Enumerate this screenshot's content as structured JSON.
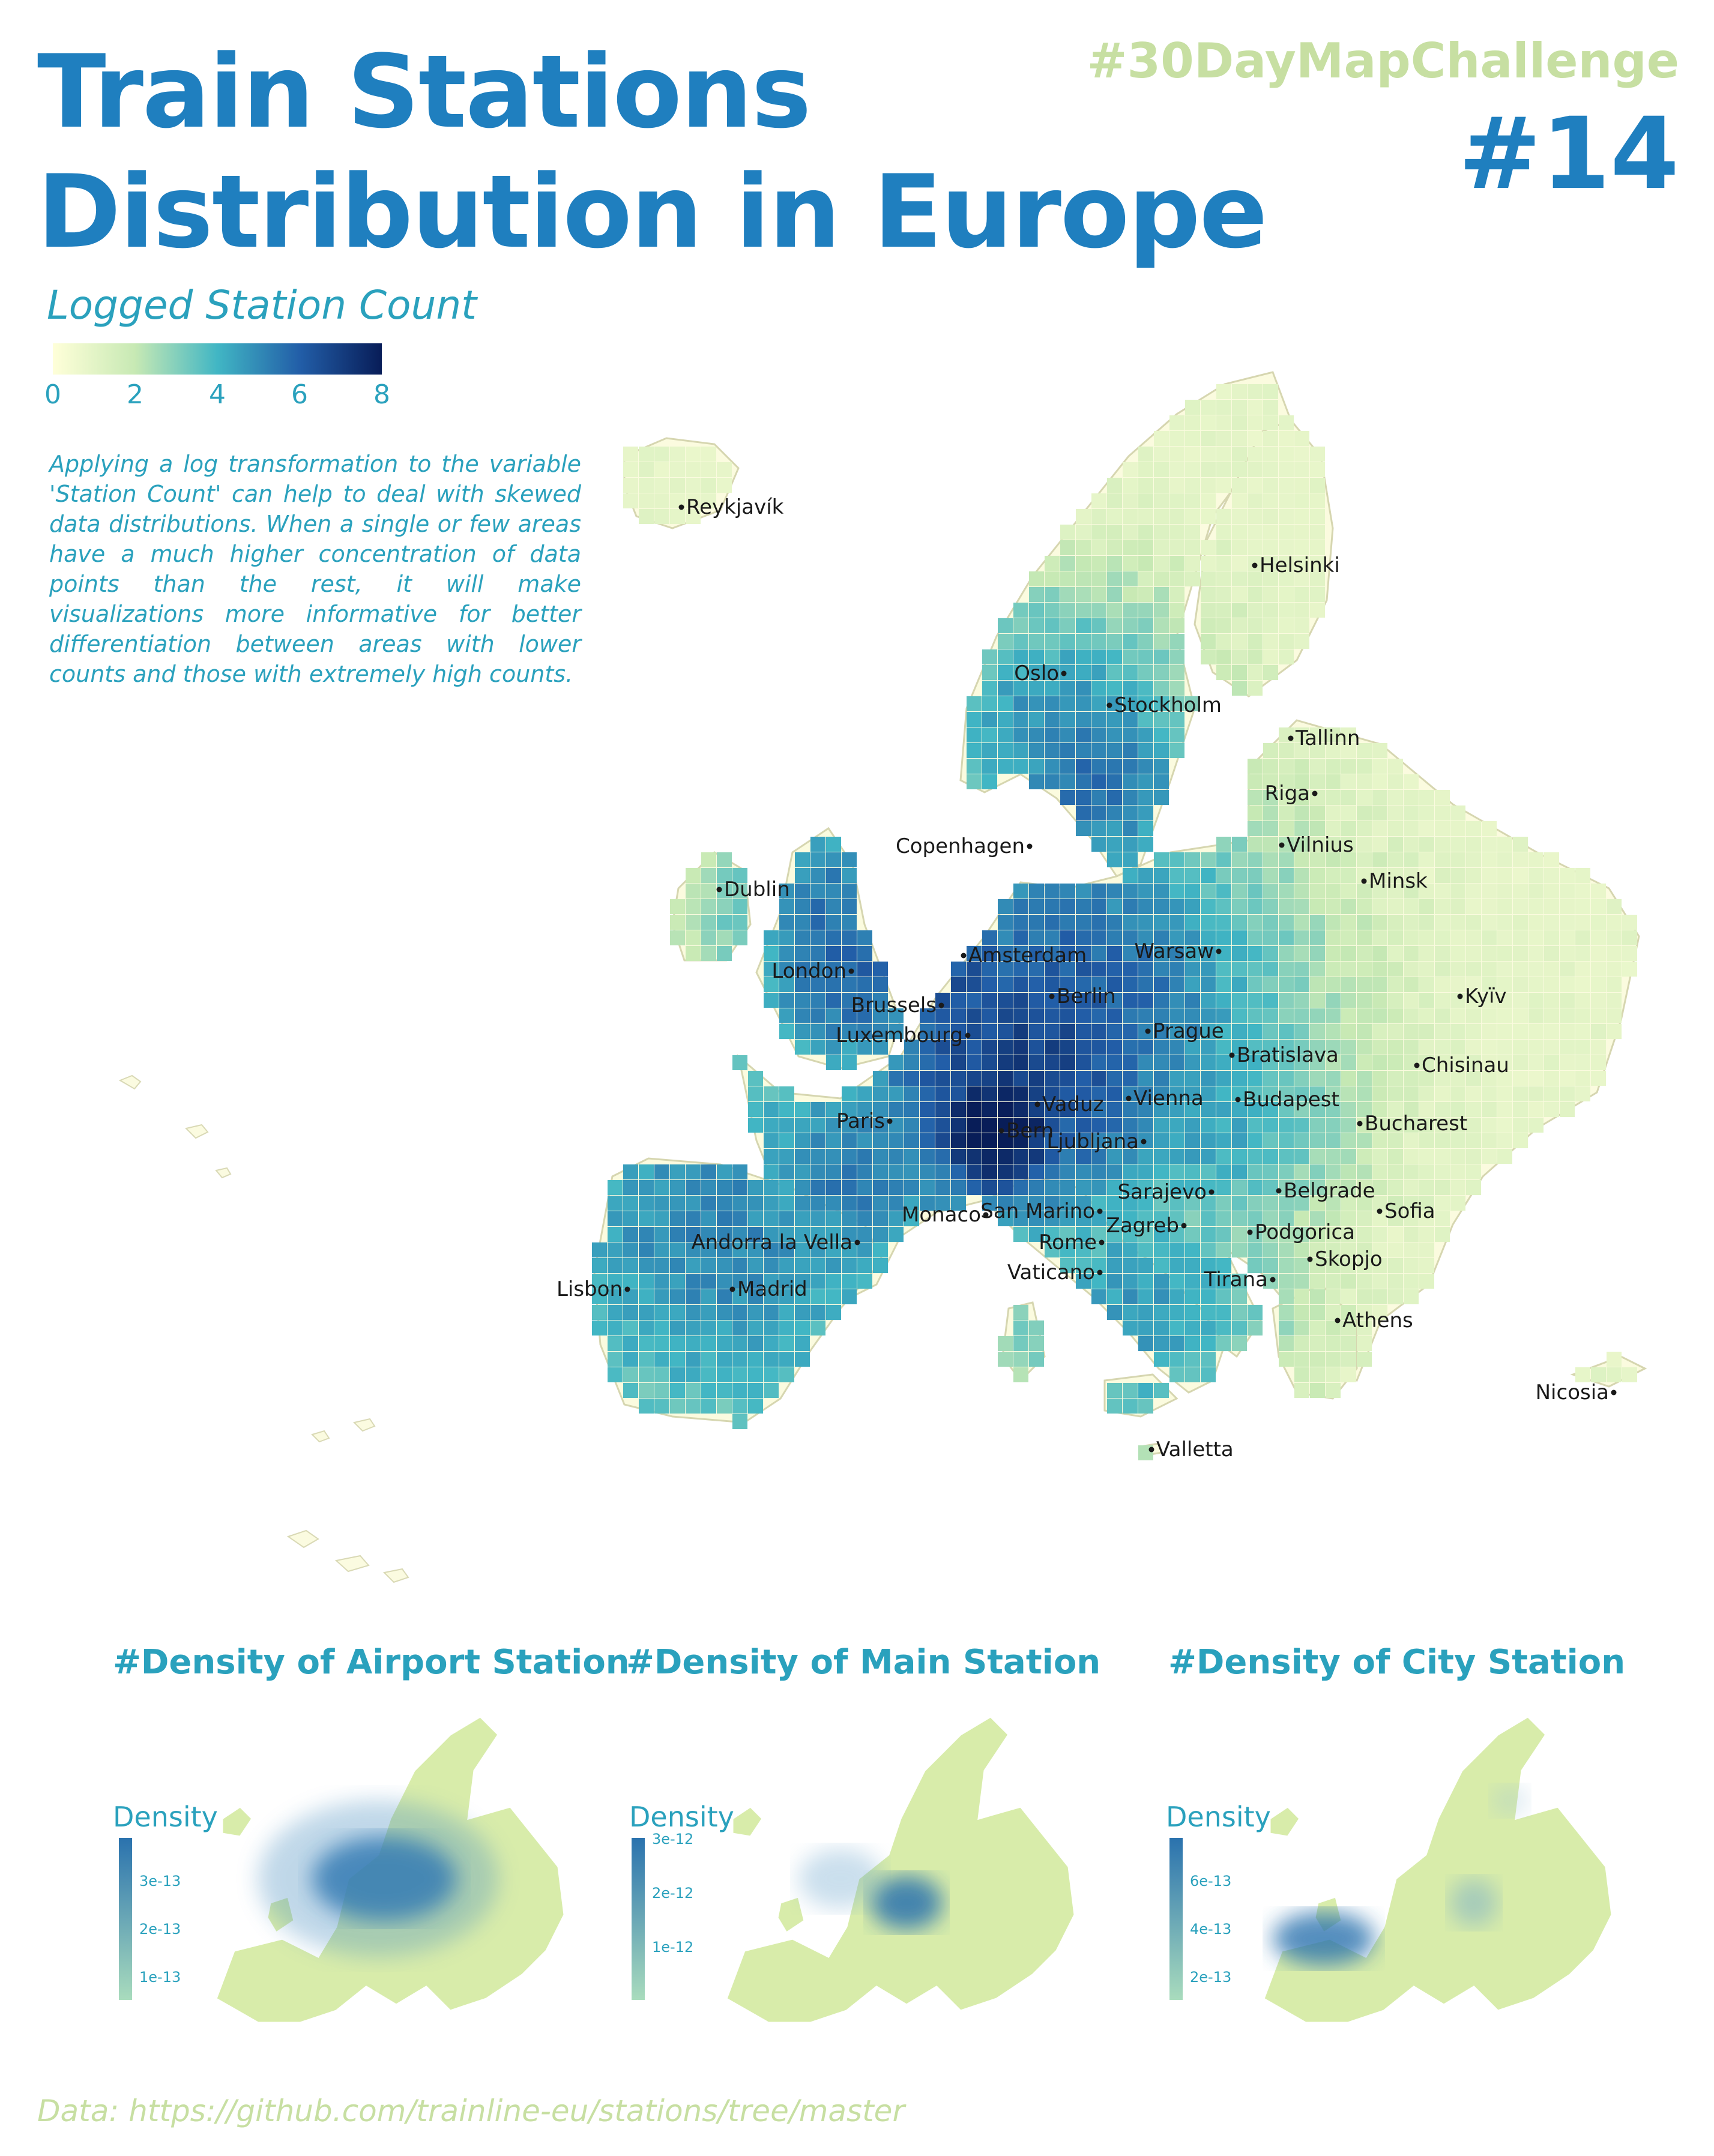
{
  "header": {
    "title_line1": "Train Stations",
    "title_line2": "Distribution in Europe",
    "challenge_tag": "#30DayMapChallenge",
    "challenge_number": "#14"
  },
  "legend": {
    "title": "Logged Station Count",
    "ticks": [
      "0",
      "2",
      "4",
      "6",
      "8"
    ],
    "tick_values": [
      0,
      2,
      4,
      6,
      8
    ],
    "range": [
      0,
      8
    ],
    "palette": "YlGnBu",
    "colors": [
      "#ffffd9",
      "#c7e9b4",
      "#41b6c4",
      "#225ea8",
      "#081d58"
    ]
  },
  "explanation": "Applying a log transformation to the variable 'Station Count' can help to deal with skewed data distributions. When a single or few areas have a much higher concentration of data points than the rest, it will make visualizations more informative for better differentiation between areas with lower counts and those with extremely high counts.",
  "cities": [
    {
      "name": "Reykjavík"
    },
    {
      "name": "Helsinki"
    },
    {
      "name": "Oslo"
    },
    {
      "name": "Stockholm"
    },
    {
      "name": "Tallinn"
    },
    {
      "name": "Riga"
    },
    {
      "name": "Copenhagen"
    },
    {
      "name": "Vilnius"
    },
    {
      "name": "Dublin"
    },
    {
      "name": "Minsk"
    },
    {
      "name": "Amsterdam"
    },
    {
      "name": "Warsaw"
    },
    {
      "name": "London"
    },
    {
      "name": "Berlin"
    },
    {
      "name": "Kyïv"
    },
    {
      "name": "Brussels"
    },
    {
      "name": "Prague"
    },
    {
      "name": "Luxembourg"
    },
    {
      "name": "Bratislava"
    },
    {
      "name": "Chisinau"
    },
    {
      "name": "Vaduz"
    },
    {
      "name": "Vienna"
    },
    {
      "name": "Budapest"
    },
    {
      "name": "Paris"
    },
    {
      "name": "Bucharest"
    },
    {
      "name": "Bern"
    },
    {
      "name": "Ljubljana"
    },
    {
      "name": "Sarajevo"
    },
    {
      "name": "Belgrade"
    },
    {
      "name": "San Marino"
    },
    {
      "name": "Monaco"
    },
    {
      "name": "Sofia"
    },
    {
      "name": "Zagreb"
    },
    {
      "name": "Podgorica"
    },
    {
      "name": "Andorra la Vella"
    },
    {
      "name": "Rome"
    },
    {
      "name": "Skopjo"
    },
    {
      "name": "Vaticano"
    },
    {
      "name": "Tirana"
    },
    {
      "name": "Lisbon"
    },
    {
      "name": "Madrid"
    },
    {
      "name": "Athens"
    },
    {
      "name": "Nicosia"
    },
    {
      "name": "Valletta"
    }
  ],
  "density_panels": [
    {
      "title": "#Density of Airport Station",
      "legend_title": "Density",
      "ticks": [
        "3e-13",
        "2e-13",
        "1e-13"
      ],
      "peak": "Central Europe (Germany / Switzerland)"
    },
    {
      "title": "#Density of Main Station",
      "legend_title": "Density",
      "ticks": [
        "3e-12",
        "2e-12",
        "1e-12"
      ],
      "peak": "Switzerland / eastern France"
    },
    {
      "title": "#Density of City Station",
      "legend_title": "Density",
      "ticks": [
        "6e-13",
        "4e-13",
        "2e-13"
      ],
      "peak": "Spain / Portugal"
    }
  ],
  "source": "Data: https://github.com/trainline-eu/stations/tree/master"
}
